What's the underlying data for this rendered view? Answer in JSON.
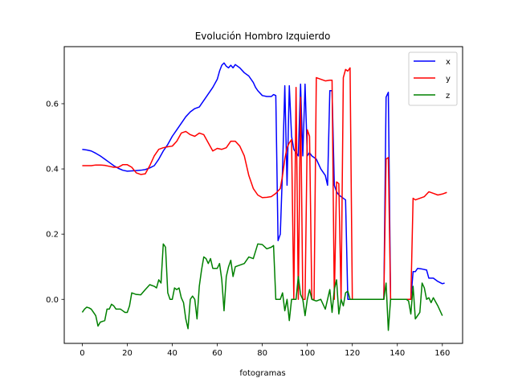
{
  "chart_data": {
    "type": "line",
    "title": "Evolución Hombro Izquierdo",
    "xlabel": "fotogramas",
    "ylabel": "",
    "xlim": [
      -8,
      169
    ],
    "ylim": [
      -0.135,
      0.775
    ],
    "xticks": [
      0,
      20,
      40,
      60,
      80,
      100,
      120,
      140,
      160
    ],
    "yticks": [
      0.0,
      0.2,
      0.4,
      0.6
    ],
    "ytick_labels": [
      "0.0",
      "0.2",
      "0.4",
      "0.6"
    ],
    "grid": false,
    "legend_position": "top-right",
    "series": [
      {
        "name": "x",
        "color": "#0000ff",
        "points": [
          [
            0,
            0.46
          ],
          [
            2,
            0.458
          ],
          [
            4,
            0.455
          ],
          [
            6,
            0.448
          ],
          [
            8,
            0.44
          ],
          [
            10,
            0.43
          ],
          [
            12,
            0.42
          ],
          [
            14,
            0.41
          ],
          [
            16,
            0.402
          ],
          [
            18,
            0.396
          ],
          [
            20,
            0.393
          ],
          [
            22,
            0.394
          ],
          [
            24,
            0.395
          ],
          [
            26,
            0.396
          ],
          [
            28,
            0.398
          ],
          [
            30,
            0.403
          ],
          [
            32,
            0.41
          ],
          [
            34,
            0.43
          ],
          [
            36,
            0.455
          ],
          [
            38,
            0.475
          ],
          [
            40,
            0.5
          ],
          [
            42,
            0.52
          ],
          [
            44,
            0.54
          ],
          [
            46,
            0.56
          ],
          [
            48,
            0.575
          ],
          [
            50,
            0.585
          ],
          [
            52,
            0.59
          ],
          [
            54,
            0.61
          ],
          [
            56,
            0.63
          ],
          [
            58,
            0.65
          ],
          [
            60,
            0.675
          ],
          [
            61,
            0.7
          ],
          [
            62,
            0.718
          ],
          [
            63,
            0.725
          ],
          [
            64,
            0.715
          ],
          [
            65,
            0.71
          ],
          [
            66,
            0.718
          ],
          [
            67,
            0.71
          ],
          [
            68,
            0.72
          ],
          [
            70,
            0.71
          ],
          [
            72,
            0.695
          ],
          [
            74,
            0.685
          ],
          [
            76,
            0.665
          ],
          [
            77,
            0.65
          ],
          [
            78,
            0.64
          ],
          [
            80,
            0.625
          ],
          [
            82,
            0.622
          ],
          [
            84,
            0.622
          ],
          [
            85,
            0.628
          ],
          [
            86,
            0.625
          ],
          [
            87,
            0.18
          ],
          [
            88,
            0.2
          ],
          [
            89,
            0.4
          ],
          [
            90,
            0.655
          ],
          [
            91,
            0.35
          ],
          [
            92,
            0.655
          ],
          [
            93,
            0.5
          ],
          [
            94,
            0.46
          ],
          [
            95,
            0.45
          ],
          [
            96,
            0.44
          ],
          [
            97,
            0.66
          ],
          [
            98,
            0.44
          ],
          [
            99,
            0.66
          ],
          [
            100,
            0.44
          ],
          [
            101,
            0.45
          ],
          [
            102,
            0.44
          ],
          [
            104,
            0.43
          ],
          [
            106,
            0.4
          ],
          [
            108,
            0.38
          ],
          [
            109,
            0.35
          ],
          [
            110,
            0.64
          ],
          [
            111,
            0.64
          ],
          [
            112,
            0.35
          ],
          [
            113,
            0.33
          ],
          [
            114,
            0.32
          ],
          [
            116,
            0.31
          ],
          [
            117,
            0.305
          ],
          [
            118,
            0.0
          ],
          [
            120,
            0.0
          ],
          [
            125,
            0.0
          ],
          [
            130,
            0.0
          ],
          [
            134,
            0.0
          ],
          [
            135,
            0.62
          ],
          [
            136,
            0.635
          ],
          [
            137,
            0.0
          ],
          [
            140,
            0.0
          ],
          [
            145,
            0.0
          ],
          [
            146,
            0.0
          ],
          [
            147,
            0.085
          ],
          [
            148,
            0.085
          ],
          [
            149,
            0.095
          ],
          [
            151,
            0.093
          ],
          [
            153,
            0.09
          ],
          [
            154,
            0.065
          ],
          [
            156,
            0.065
          ],
          [
            158,
            0.055
          ],
          [
            160,
            0.048
          ],
          [
            161,
            0.05
          ]
        ]
      },
      {
        "name": "y",
        "color": "#ff0000",
        "points": [
          [
            0,
            0.41
          ],
          [
            2,
            0.41
          ],
          [
            4,
            0.41
          ],
          [
            6,
            0.412
          ],
          [
            8,
            0.412
          ],
          [
            10,
            0.411
          ],
          [
            12,
            0.408
          ],
          [
            14,
            0.405
          ],
          [
            16,
            0.405
          ],
          [
            18,
            0.413
          ],
          [
            20,
            0.413
          ],
          [
            22,
            0.405
          ],
          [
            24,
            0.388
          ],
          [
            26,
            0.383
          ],
          [
            28,
            0.385
          ],
          [
            30,
            0.41
          ],
          [
            32,
            0.44
          ],
          [
            34,
            0.46
          ],
          [
            36,
            0.465
          ],
          [
            38,
            0.468
          ],
          [
            40,
            0.47
          ],
          [
            42,
            0.485
          ],
          [
            44,
            0.51
          ],
          [
            46,
            0.515
          ],
          [
            48,
            0.505
          ],
          [
            50,
            0.5
          ],
          [
            52,
            0.51
          ],
          [
            54,
            0.505
          ],
          [
            56,
            0.48
          ],
          [
            58,
            0.455
          ],
          [
            60,
            0.463
          ],
          [
            62,
            0.46
          ],
          [
            64,
            0.465
          ],
          [
            66,
            0.485
          ],
          [
            68,
            0.485
          ],
          [
            70,
            0.47
          ],
          [
            72,
            0.44
          ],
          [
            74,
            0.38
          ],
          [
            76,
            0.34
          ],
          [
            78,
            0.32
          ],
          [
            80,
            0.312
          ],
          [
            82,
            0.313
          ],
          [
            84,
            0.315
          ],
          [
            86,
            0.325
          ],
          [
            88,
            0.34
          ],
          [
            89,
            0.38
          ],
          [
            90,
            0.43
          ],
          [
            91,
            0.465
          ],
          [
            92,
            0.48
          ],
          [
            93,
            0.49
          ],
          [
            94,
            0.0
          ],
          [
            95,
            0.65
          ],
          [
            96,
            0.0
          ],
          [
            97,
            0.62
          ],
          [
            98,
            0.0
          ],
          [
            99,
            0.0
          ],
          [
            100,
            0.52
          ],
          [
            101,
            0.5
          ],
          [
            102,
            0.0
          ],
          [
            103,
            0.0
          ],
          [
            104,
            0.68
          ],
          [
            106,
            0.675
          ],
          [
            108,
            0.67
          ],
          [
            110,
            0.672
          ],
          [
            111,
            0.672
          ],
          [
            112,
            0.0
          ],
          [
            113,
            0.36
          ],
          [
            114,
            0.355
          ],
          [
            115,
            0.0
          ],
          [
            116,
            0.68
          ],
          [
            117,
            0.705
          ],
          [
            118,
            0.7
          ],
          [
            119,
            0.71
          ],
          [
            120,
            0.0
          ],
          [
            125,
            0.0
          ],
          [
            130,
            0.0
          ],
          [
            134,
            0.0
          ],
          [
            135,
            0.43
          ],
          [
            136,
            0.435
          ],
          [
            137,
            0.0
          ],
          [
            140,
            0.0
          ],
          [
            145,
            0.0
          ],
          [
            146,
            0.0
          ],
          [
            147,
            0.31
          ],
          [
            148,
            0.305
          ],
          [
            150,
            0.31
          ],
          [
            152,
            0.315
          ],
          [
            154,
            0.33
          ],
          [
            156,
            0.325
          ],
          [
            158,
            0.32
          ],
          [
            160,
            0.323
          ],
          [
            162,
            0.328
          ]
        ]
      },
      {
        "name": "z",
        "color": "#008000",
        "points": [
          [
            0,
            -0.04
          ],
          [
            1,
            -0.03
          ],
          [
            2,
            -0.024
          ],
          [
            3,
            -0.026
          ],
          [
            4,
            -0.03
          ],
          [
            5,
            -0.04
          ],
          [
            6,
            -0.05
          ],
          [
            7,
            -0.082
          ],
          [
            8,
            -0.07
          ],
          [
            10,
            -0.065
          ],
          [
            11,
            -0.03
          ],
          [
            12,
            -0.03
          ],
          [
            13,
            -0.015
          ],
          [
            14,
            -0.02
          ],
          [
            15,
            -0.03
          ],
          [
            17,
            -0.03
          ],
          [
            18,
            -0.035
          ],
          [
            19,
            -0.04
          ],
          [
            20,
            -0.04
          ],
          [
            21,
            -0.02
          ],
          [
            22,
            0.02
          ],
          [
            24,
            0.015
          ],
          [
            26,
            0.014
          ],
          [
            28,
            0.03
          ],
          [
            30,
            0.045
          ],
          [
            32,
            0.04
          ],
          [
            33,
            0.035
          ],
          [
            34,
            0.06
          ],
          [
            35,
            0.05
          ],
          [
            36,
            0.17
          ],
          [
            37,
            0.16
          ],
          [
            38,
            0.02
          ],
          [
            39,
            0.0
          ],
          [
            40,
            0.0
          ],
          [
            41,
            0.035
          ],
          [
            42,
            0.03
          ],
          [
            43,
            0.035
          ],
          [
            44,
            0.005
          ],
          [
            45,
            -0.01
          ],
          [
            46,
            -0.06
          ],
          [
            47,
            -0.09
          ],
          [
            48,
            0.0
          ],
          [
            49,
            0.01
          ],
          [
            50,
            0.0
          ],
          [
            51,
            -0.06
          ],
          [
            52,
            0.04
          ],
          [
            53,
            0.09
          ],
          [
            54,
            0.13
          ],
          [
            55,
            0.125
          ],
          [
            56,
            0.11
          ],
          [
            57,
            0.125
          ],
          [
            58,
            0.095
          ],
          [
            60,
            0.095
          ],
          [
            61,
            0.11
          ],
          [
            62,
            0.06
          ],
          [
            63,
            -0.035
          ],
          [
            64,
            0.07
          ],
          [
            65,
            0.1
          ],
          [
            66,
            0.12
          ],
          [
            67,
            0.07
          ],
          [
            68,
            0.1
          ],
          [
            70,
            0.105
          ],
          [
            72,
            0.11
          ],
          [
            74,
            0.13
          ],
          [
            76,
            0.125
          ],
          [
            78,
            0.17
          ],
          [
            80,
            0.168
          ],
          [
            82,
            0.155
          ],
          [
            84,
            0.16
          ],
          [
            85,
            0.165
          ],
          [
            86,
            0.0
          ],
          [
            88,
            0.0
          ],
          [
            89,
            0.02
          ],
          [
            90,
            -0.035
          ],
          [
            91,
            0.0
          ],
          [
            92,
            -0.065
          ],
          [
            93,
            0.0
          ],
          [
            94,
            0.0
          ],
          [
            95,
            0.0
          ],
          [
            96,
            0.07
          ],
          [
            97,
            0.015
          ],
          [
            98,
            0.0
          ],
          [
            99,
            -0.05
          ],
          [
            100,
            0.0
          ],
          [
            101,
            0.03
          ],
          [
            102,
            0.0
          ],
          [
            104,
            -0.005
          ],
          [
            106,
            0.0
          ],
          [
            108,
            -0.03
          ],
          [
            109,
            0.0
          ],
          [
            110,
            0.03
          ],
          [
            111,
            -0.04
          ],
          [
            112,
            0.03
          ],
          [
            113,
            0.06
          ],
          [
            114,
            -0.045
          ],
          [
            115,
            0.0
          ],
          [
            116,
            -0.02
          ],
          [
            117,
            0.02
          ],
          [
            118,
            0.025
          ],
          [
            119,
            0.0
          ],
          [
            120,
            0.0
          ],
          [
            125,
            0.0
          ],
          [
            130,
            0.0
          ],
          [
            134,
            0.0
          ],
          [
            135,
            0.05
          ],
          [
            136,
            -0.095
          ],
          [
            137,
            0.0
          ],
          [
            140,
            0.0
          ],
          [
            144,
            0.0
          ],
          [
            145,
            -0.005
          ],
          [
            146,
            -0.045
          ],
          [
            147,
            0.04
          ],
          [
            148,
            -0.06
          ],
          [
            149,
            -0.05
          ],
          [
            150,
            -0.04
          ],
          [
            151,
            0.05
          ],
          [
            152,
            0.035
          ],
          [
            153,
            0.0
          ],
          [
            154,
            0.005
          ],
          [
            155,
            -0.01
          ],
          [
            156,
            0.005
          ],
          [
            158,
            -0.02
          ],
          [
            160,
            -0.05
          ]
        ]
      }
    ]
  }
}
